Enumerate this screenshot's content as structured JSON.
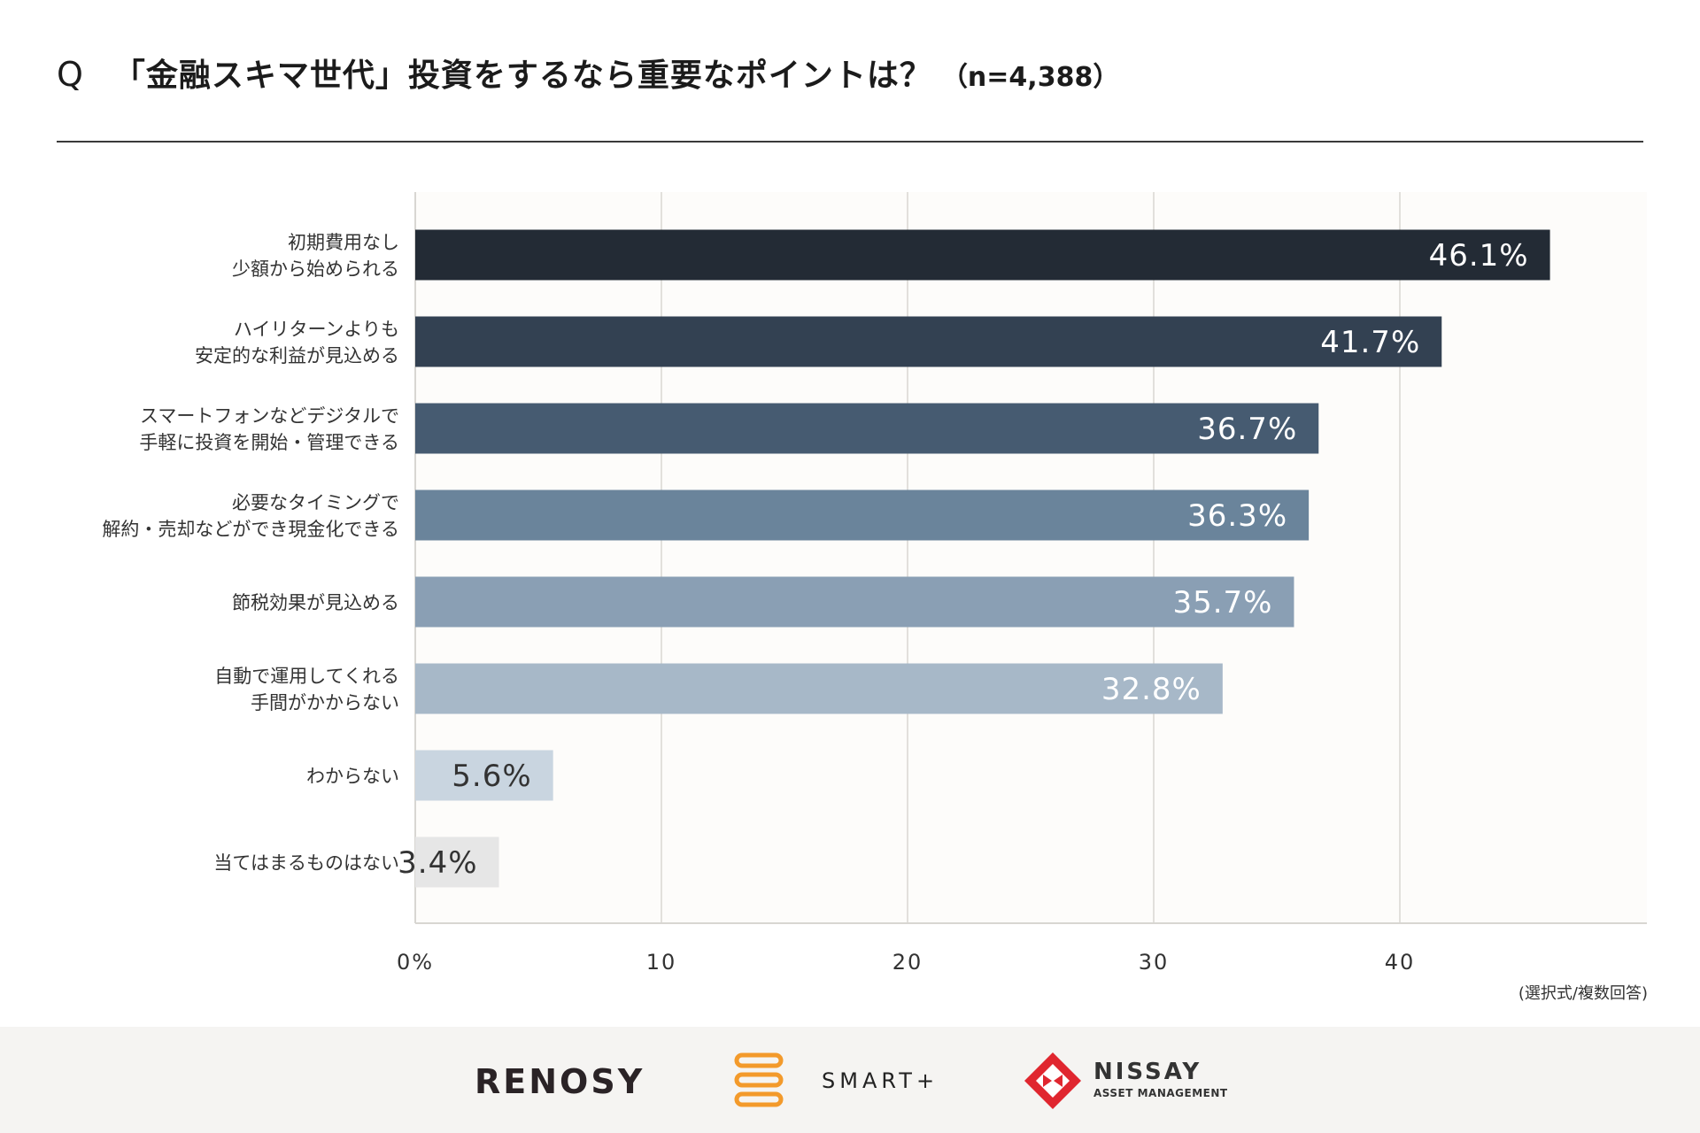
{
  "header": {
    "q_mark": "Q",
    "title": "「金融スキマ世代」投資をするなら重要なポイントは？",
    "sample": "（n=4,388）"
  },
  "chart_data": {
    "type": "bar",
    "orientation": "horizontal",
    "categories": [
      [
        "初期費用なし",
        "少額から始められる"
      ],
      [
        "ハイリターンよりも",
        "安定的な利益が見込める"
      ],
      [
        "スマートフォンなどデジタルで",
        "手軽に投資を開始・管理できる"
      ],
      [
        "必要なタイミングで",
        "解約・売却などができ現金化できる"
      ],
      [
        "節税効果が見込める"
      ],
      [
        "自動で運用してくれる",
        "手間がかからない"
      ],
      [
        "わからない"
      ],
      [
        "当てはまるものはない"
      ]
    ],
    "values": [
      46.1,
      41.7,
      36.7,
      36.3,
      35.7,
      32.8,
      5.6,
      3.4
    ],
    "value_labels": [
      "46.1%",
      "41.7%",
      "36.7%",
      "36.3%",
      "35.7%",
      "32.8%",
      "5.6%",
      "3.4%"
    ],
    "bar_colors": [
      "#232b35",
      "#334152",
      "#465b71",
      "#6a849b",
      "#8a9fb4",
      "#a7b8c8",
      "#c9d5e0",
      "#e6e6e6"
    ],
    "label_colors": [
      "#ffffff",
      "#ffffff",
      "#ffffff",
      "#ffffff",
      "#ffffff",
      "#ffffff",
      "#333333",
      "#333333"
    ],
    "x_ticks": [
      "0%",
      "10",
      "20",
      "30",
      "40"
    ],
    "x_tick_values": [
      0,
      10,
      20,
      30,
      40
    ],
    "xlim": [
      0,
      50
    ],
    "grid": true,
    "plot_background": "#fdfcfa"
  },
  "note": "(選択式/複数回答)",
  "footer": {
    "logo_renosy": "RENOSY",
    "logo_smart": "SMART+",
    "logo_nissay": "NISSAY",
    "logo_nissay_sub": "ASSET MANAGEMENT"
  }
}
